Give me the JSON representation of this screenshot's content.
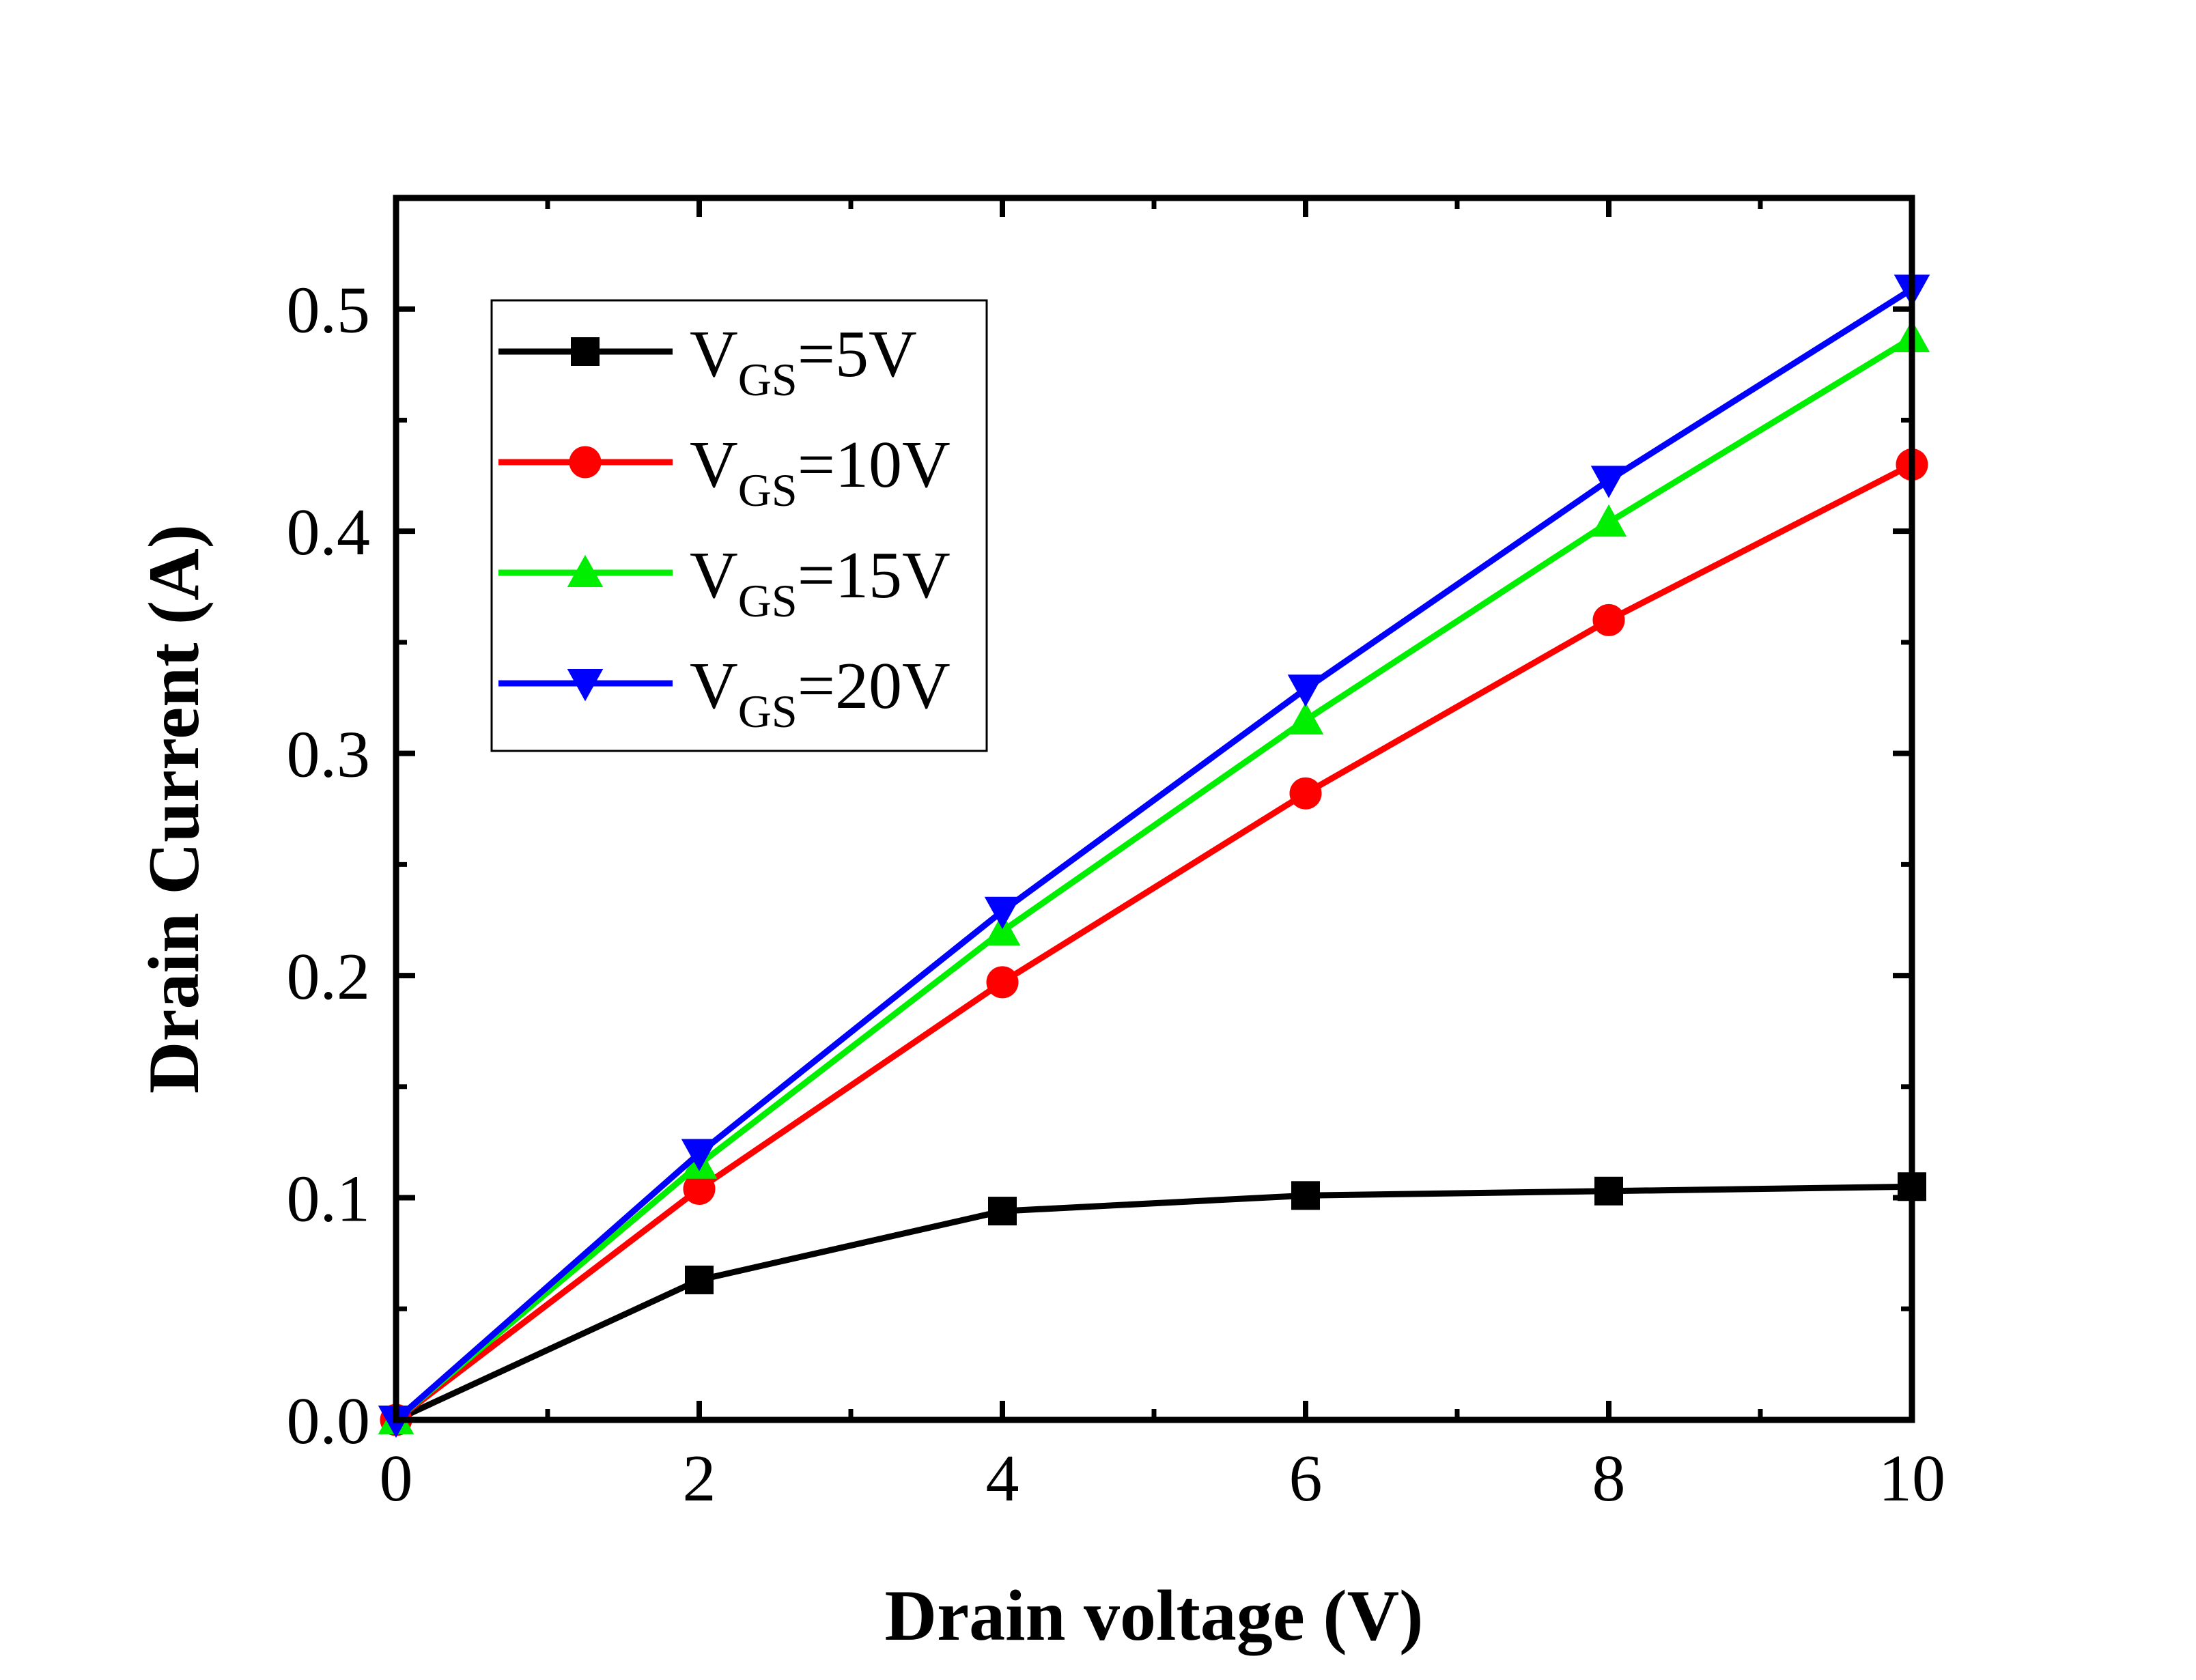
{
  "chart_data": {
    "type": "line",
    "xlabel": "Drain voltage (V)",
    "ylabel": "Drain Current (A)",
    "xlim": [
      0,
      10
    ],
    "ylim": [
      0,
      0.55
    ],
    "x_ticks": [
      "0",
      "2",
      "4",
      "6",
      "8",
      "10"
    ],
    "y_ticks": [
      "0.0",
      "0.1",
      "0.2",
      "0.3",
      "0.4",
      "0.5"
    ],
    "grid": false,
    "legend_position": "top-left",
    "x": [
      0,
      2,
      4,
      6,
      8,
      10
    ],
    "series": [
      {
        "name_main": "V",
        "name_sub": "GS",
        "name_rest": "=5V",
        "color": "#000000",
        "marker": "square",
        "values": [
          0,
          0.063,
          0.094,
          0.101,
          0.103,
          0.105
        ]
      },
      {
        "name_main": "V",
        "name_sub": "GS",
        "name_rest": "=10V",
        "color": "#ff0000",
        "marker": "circle",
        "values": [
          0,
          0.104,
          0.197,
          0.282,
          0.36,
          0.43
        ]
      },
      {
        "name_main": "V",
        "name_sub": "GS",
        "name_rest": "=15V",
        "color": "#00ee00",
        "marker": "triangle-up",
        "values": [
          0,
          0.115,
          0.22,
          0.315,
          0.404,
          0.487
        ]
      },
      {
        "name_main": "V",
        "name_sub": "GS",
        "name_rest": "=20V",
        "color": "#0000ff",
        "marker": "triangle-down",
        "values": [
          0,
          0.12,
          0.229,
          0.329,
          0.423,
          0.509
        ]
      }
    ]
  }
}
